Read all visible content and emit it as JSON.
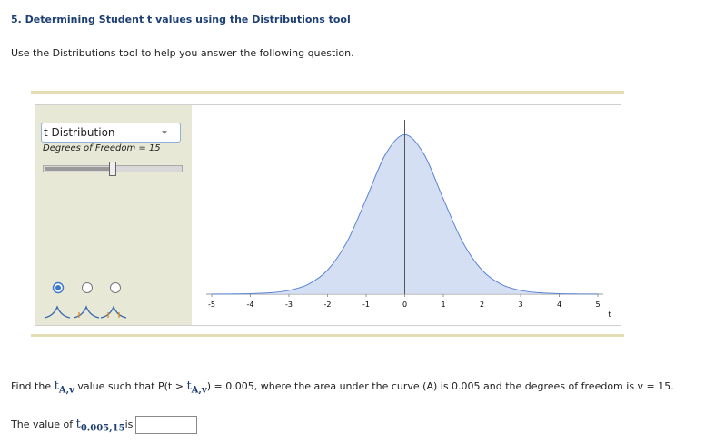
{
  "header": {
    "title": "5. Determining Student t values using the Distributions tool",
    "instruction": "Use the Distributions tool to help you answer the following question."
  },
  "tool": {
    "distribution": "t Distribution",
    "df_label": "Degrees of Freedom = 15"
  },
  "chart_data": {
    "type": "area",
    "x_label": "t",
    "x": [
      -5,
      -4.5,
      -4,
      -3.5,
      -3,
      -2.5,
      -2,
      -1.5,
      -1,
      -0.5,
      0,
      0.5,
      1,
      1.5,
      2,
      2.5,
      3,
      3.5,
      4,
      4.5,
      5
    ],
    "values": [
      0.00015,
      0.0004,
      0.0012,
      0.0033,
      0.0091,
      0.0242,
      0.0592,
      0.128,
      0.234,
      0.344,
      0.3925,
      0.344,
      0.234,
      0.128,
      0.0592,
      0.0242,
      0.0091,
      0.0033,
      0.0012,
      0.0004,
      0.00015
    ],
    "color": "#5b84d0",
    "fill": "#d4dff4",
    "xlim": [
      -5,
      5
    ],
    "ylim": [
      0,
      0.4
    ],
    "xticks": [
      -5,
      -4,
      -3,
      -2,
      -1,
      0,
      1,
      2,
      3,
      4,
      5
    ]
  },
  "question": [
    "Find the ",
    "t",
    "A,v",
    " value such that P(t > ",
    "t",
    "A,v",
    ") = 0.005, where the area under the curve (A) is 0.005 and the degrees of freedom is v = 15."
  ],
  "answer": [
    "The value of ",
    "t",
    "0.005,15",
    "is"
  ]
}
